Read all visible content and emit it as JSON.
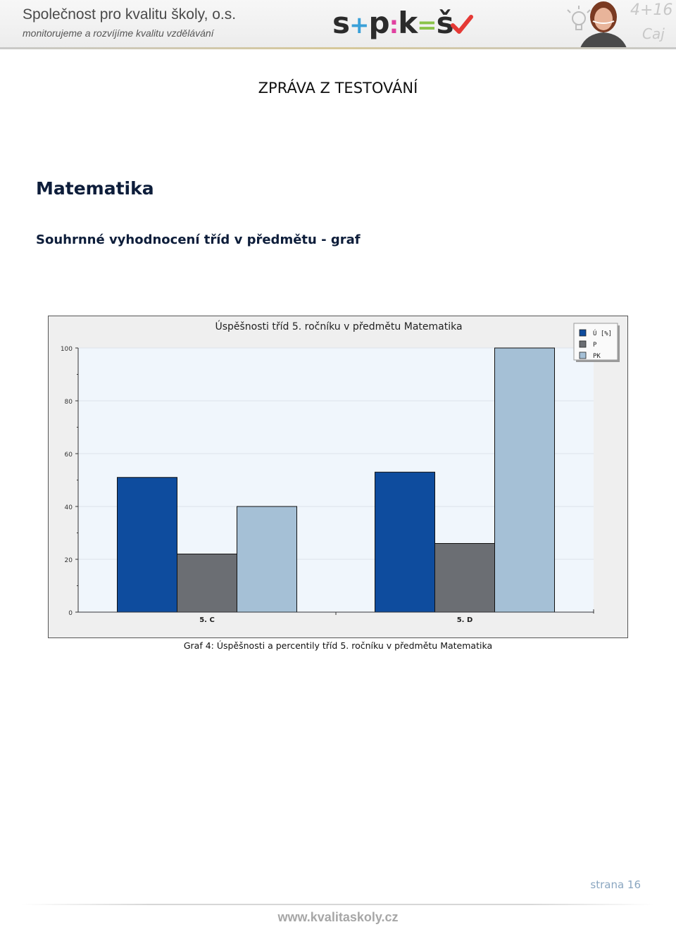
{
  "header": {
    "org_name": "Společnost pro kvalitu školy, o.s.",
    "tagline": "monitorujeme a rozvíjíme kvalitu vzdělávání",
    "logo": {
      "s1": "s",
      "plus": "+",
      "p": "p",
      "colon": ":",
      "k": "k",
      "equals": "=",
      "s2": "š",
      "check_icon": "checkmark-icon",
      "colors": {
        "text": "#2b2b2b",
        "plus": "#3aa0d8",
        "colon": "#e040a0",
        "equals": "#8bc34a",
        "check": "#e53935"
      }
    },
    "art": {
      "formula": "4+16",
      "note": "Caj"
    }
  },
  "report_title": "ZPRÁVA Z TESTOVÁNÍ",
  "subject": "Matematika",
  "section_title": "Souhrnné vyhodnocení tříd v předmětu - graf",
  "chart_data": {
    "type": "bar",
    "title": "Úspěšnosti tříd 5. ročníku v předmětu Matematika",
    "categories": [
      "5. C",
      "5. D"
    ],
    "series": [
      {
        "name": "Ú [%]",
        "values": [
          51,
          53
        ],
        "color": "#0e4c9e"
      },
      {
        "name": "P",
        "values": [
          22,
          26
        ],
        "color": "#6b6e73"
      },
      {
        "name": "PK",
        "values": [
          40,
          100
        ],
        "color": "#a5c0d6"
      }
    ],
    "ylim": [
      0,
      100
    ],
    "yticks": [
      "0",
      "20",
      "40",
      "60",
      "80",
      "100"
    ],
    "grid": true,
    "legend_position": "top-right"
  },
  "caption": "Graf 4: Úspěšnosti a percentily tříd 5. ročníku v předmětu Matematika",
  "footer": {
    "page_number": "strana 16",
    "url": "www.kvalitaskoly.cz"
  }
}
